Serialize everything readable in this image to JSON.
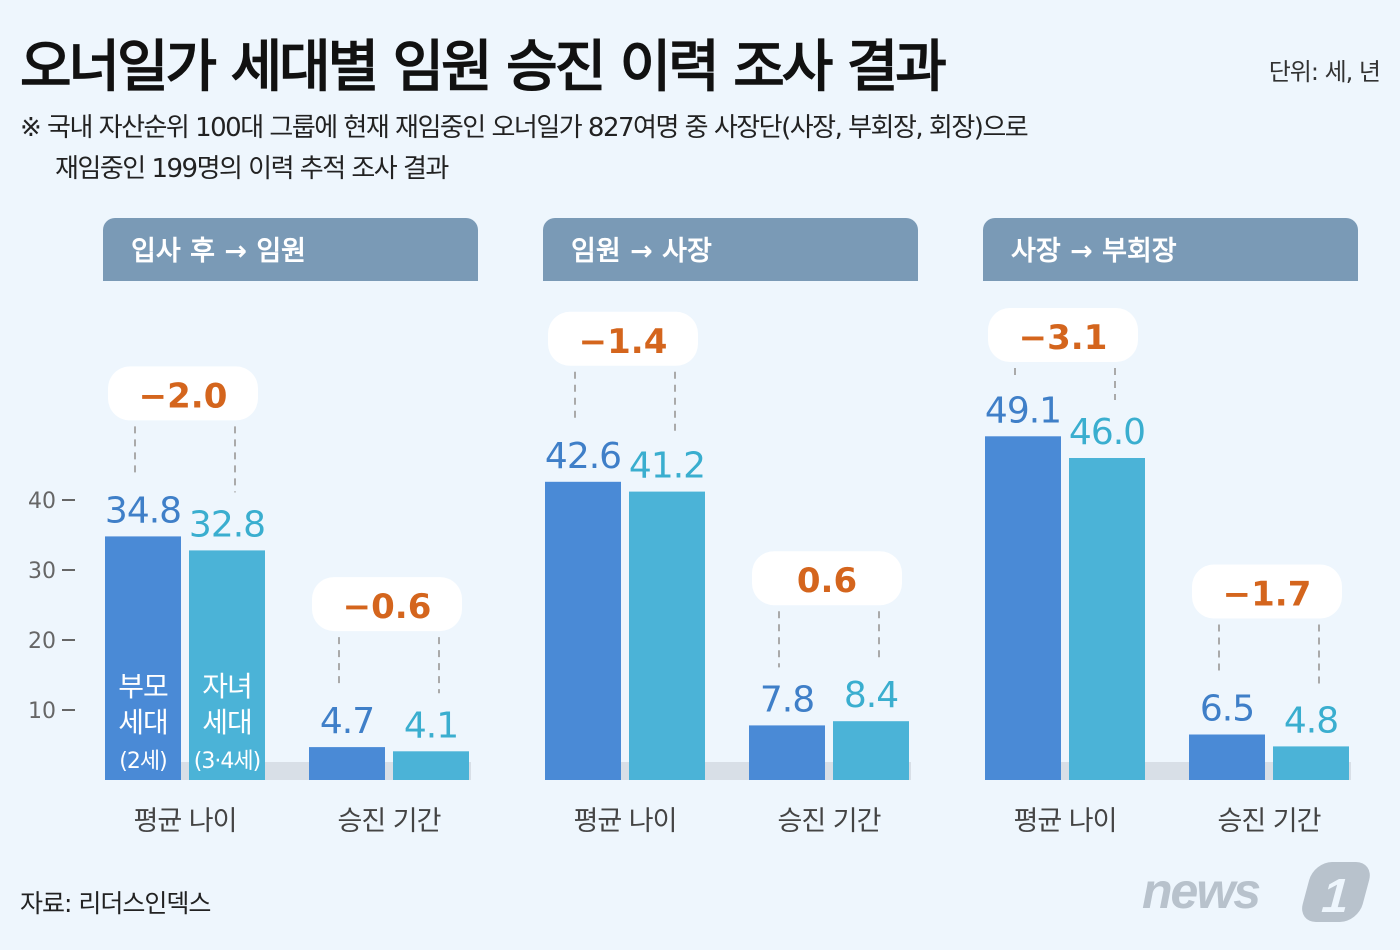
{
  "title": "오너일가 세대별 임원 승진 이력 조사 결과",
  "unit": "단위: 세, 년",
  "note_line1": "※ 국내 자산순위 100대 그룹에 현재 재임중인 오너일가 827여명 중 사장단(사장, 부회장, 회장)으로",
  "note_line2": "재임중인 199명의 이력 추적 조사 결과",
  "source": "자료: 리더스인덱스",
  "logo_text": "news1",
  "colors": {
    "background": "#eef6fd",
    "header": "#7a9ab6",
    "parent": "#4a8ad6",
    "child": "#4bb3d7",
    "parent_text": "#3f7fc8",
    "child_text": "#3aaecf",
    "diff": "#d4651d"
  },
  "series_labels": {
    "parent": [
      "부모",
      "세대",
      "(2세)"
    ],
    "child": [
      "자녀",
      "세대",
      "(3·4세)"
    ]
  },
  "chart_data": {
    "type": "bar",
    "y_ticks": [
      10,
      20,
      30,
      40
    ],
    "ylim": [
      0,
      50
    ],
    "grid": false,
    "panels": [
      {
        "title": "입사 후 → 임원",
        "categories": [
          "평균 나이",
          "승진 기간"
        ],
        "parent": [
          34.8,
          4.7
        ],
        "child": [
          32.8,
          4.1
        ],
        "diff": [
          "−2.0",
          "−0.6"
        ]
      },
      {
        "title": "임원 → 사장",
        "categories": [
          "평균 나이",
          "승진 기간"
        ],
        "parent": [
          42.6,
          7.8
        ],
        "child": [
          41.2,
          8.4
        ],
        "diff": [
          "−1.4",
          "0.6"
        ]
      },
      {
        "title": "사장 → 부회장",
        "categories": [
          "평균 나이",
          "승진 기간"
        ],
        "parent": [
          49.1,
          6.5
        ],
        "child": [
          46.0,
          4.8
        ],
        "diff": [
          "−3.1",
          "−1.7"
        ]
      }
    ]
  }
}
